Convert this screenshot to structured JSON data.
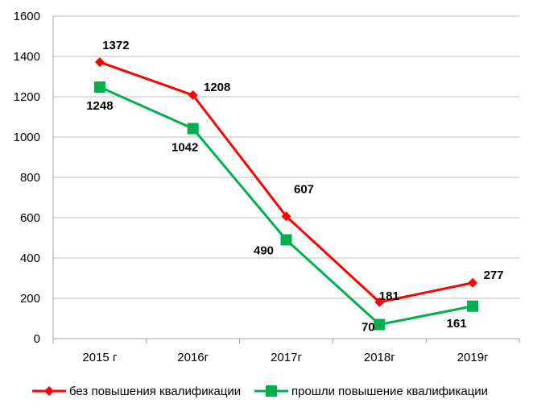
{
  "chart_data": {
    "type": "line",
    "categories": [
      "2015 г",
      "2016г",
      "2017г",
      "2018г",
      "2019г"
    ],
    "ylim": [
      0,
      1600
    ],
    "yticks": [
      0,
      200,
      400,
      600,
      800,
      1000,
      1200,
      1400,
      1600
    ],
    "grid": true,
    "legend_position": "bottom",
    "series": [
      {
        "name": "без повышения квалификации",
        "values": [
          1372,
          1208,
          607,
          181,
          277
        ],
        "color": "#ff0000",
        "marker": "diamond"
      },
      {
        "name": "прошли  повышение квалификации",
        "values": [
          1248,
          1042,
          490,
          70,
          161
        ],
        "color": "#00b050",
        "marker": "square"
      }
    ]
  }
}
